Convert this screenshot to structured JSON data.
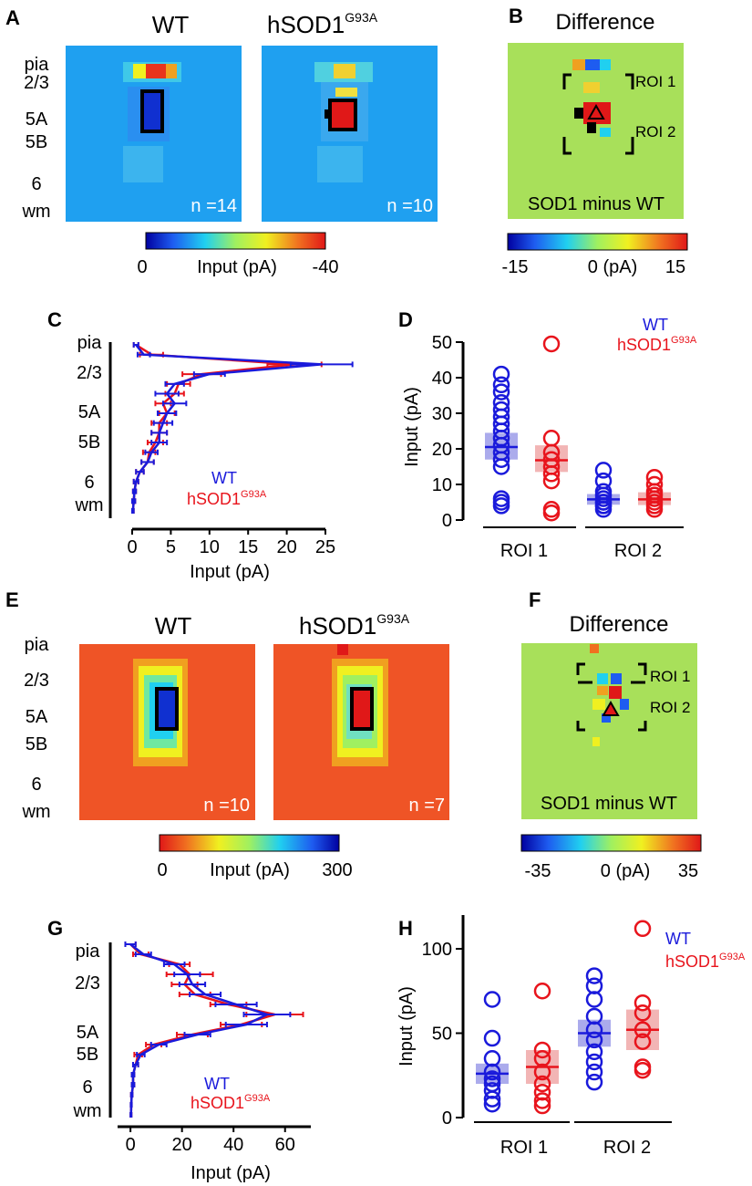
{
  "colors": {
    "wt": "#1a1adb",
    "sod1": "#e8141c",
    "wt_fill": "#8f8fe6",
    "sod1_fill": "#ee9c9c",
    "heat_bg_A": "#1fa0f0",
    "heat_bg_B": "#a8e05a",
    "heat_bg_E": "#ef5426",
    "heat_bg_F": "#a8e05a"
  },
  "layers": [
    "pia",
    "2/3",
    "5A",
    "5B",
    "6",
    "wm"
  ],
  "panels": {
    "A": {
      "letter": "A",
      "title_left": "WT",
      "title_right_base": "hSOD1",
      "title_right_sup": "G93A",
      "n_left": "n =14",
      "n_right": "n =10",
      "colorbar": {
        "min": "0",
        "label": "Input (pA)",
        "max": "-40"
      }
    },
    "B": {
      "letter": "B",
      "title": "Difference",
      "roi1": "ROI 1",
      "roi2": "ROI 2",
      "caption": "SOD1 minus WT",
      "colorbar": {
        "min": "-15",
        "label": "0 (pA)",
        "max": "15"
      }
    },
    "C": {
      "letter": "C"
    },
    "D": {
      "letter": "D"
    },
    "E": {
      "letter": "E",
      "title_left": "WT",
      "title_right_base": "hSOD1",
      "title_right_sup": "G93A",
      "n_left": "n =10",
      "n_right": "n =7",
      "colorbar": {
        "min": "0",
        "label": "Input (pA)",
        "max": "300"
      }
    },
    "F": {
      "letter": "F",
      "title": "Difference",
      "roi1": "ROI 1",
      "roi2": "ROI 2",
      "caption": "SOD1 minus WT",
      "colorbar": {
        "min": "-35",
        "label": "0 (pA)",
        "max": "35"
      }
    },
    "G": {
      "letter": "G"
    },
    "H": {
      "letter": "H"
    }
  },
  "chart_data": [
    {
      "panel": "C",
      "type": "line",
      "xlabel": "Input (pA)",
      "xlim": [
        0,
        25
      ],
      "xticks": [
        0,
        5,
        10,
        15,
        20,
        25
      ],
      "legend": [
        "WT",
        "hSOD1G93A"
      ],
      "legend_base": "hSOD1",
      "legend_sup": "G93A",
      "rows": 18,
      "series": [
        {
          "name": "WT",
          "values": [
            0.5,
            1.5,
            24.5,
            10,
            5.5,
            4.5,
            5.5,
            4.5,
            4,
            3.5,
            3.5,
            2.5,
            2,
            1,
            0.5,
            0.3,
            0.2,
            0.1
          ],
          "errors": [
            0.3,
            0.8,
            4,
            2,
            1.2,
            1.5,
            1.5,
            1.2,
            1.2,
            1,
            1,
            0.8,
            0.8,
            0.5,
            0.3,
            0.2,
            0.2,
            0.1
          ]
        },
        {
          "name": "hSOD1G93A",
          "values": [
            0.5,
            2.5,
            21,
            9,
            6,
            5.5,
            4,
            4.5,
            3.5,
            3.5,
            3,
            2.2,
            2,
            1,
            0.5,
            0.3,
            0.2,
            0.1
          ],
          "errors": [
            0.3,
            1.5,
            3.5,
            2.5,
            1.5,
            1.2,
            1,
            1,
            1,
            1,
            1,
            0.8,
            0.8,
            0.5,
            0.3,
            0.2,
            0.2,
            0.1
          ]
        }
      ]
    },
    {
      "panel": "D",
      "type": "scatter",
      "ylabel": "Input (pA)",
      "ylim": [
        0,
        50
      ],
      "yticks": [
        0,
        10,
        20,
        30,
        40,
        50
      ],
      "groups": [
        "ROI 1",
        "ROI 2"
      ],
      "legend": [
        "WT",
        "hSOD1G93A"
      ],
      "legend_base": "hSOD1",
      "legend_sup": "G93A",
      "series": [
        {
          "name": "WT",
          "points": [
            [
              41,
              38,
              36,
              33,
              31,
              29,
              27,
              25,
              23,
              21,
              19,
              17,
              15,
              6,
              5,
              4
            ],
            [
              14,
              11,
              8,
              7,
              6,
              5,
              5,
              4,
              4,
              3
            ]
          ],
          "means": [
            20.5,
            5.8
          ],
          "sem": [
            [
              17,
              24.5
            ],
            [
              4.3,
              7.3
            ]
          ]
        },
        {
          "name": "hSOD1G93A",
          "points": [
            [
              49.5,
              23,
              19,
              17,
              15,
              13,
              11,
              3,
              2
            ],
            [
              12,
              10,
              8,
              7,
              6,
              5,
              4,
              3
            ]
          ],
          "means": [
            16.8,
            5.8
          ],
          "sem": [
            [
              13.5,
              21
            ],
            [
              4.2,
              7.8
            ]
          ]
        }
      ]
    },
    {
      "panel": "G",
      "type": "line",
      "xlabel": "Input (pA)",
      "xlim": [
        -5,
        70
      ],
      "xticks": [
        0,
        20,
        40,
        60
      ],
      "legend": [
        "WT",
        "hSOD1G93A"
      ],
      "legend_base": "hSOD1",
      "legend_sup": "G93A",
      "rows": 18,
      "series": [
        {
          "name": "WT",
          "values": [
            0,
            5,
            17,
            22,
            24,
            29,
            41,
            53,
            45,
            26,
            11,
            4,
            2,
            1,
            1,
            0.5,
            0.3,
            0.2
          ],
          "errors": [
            2,
            3,
            4,
            5,
            5,
            6,
            8,
            9,
            8,
            5,
            3,
            1.5,
            1,
            0.5,
            0.5,
            0.3,
            0.2,
            0.2
          ]
        },
        {
          "name": "hSOD1G93A",
          "values": [
            0,
            4,
            19,
            23,
            21,
            25,
            38,
            56,
            43,
            24,
            9,
            3,
            2,
            1,
            1,
            0.5,
            0.3,
            0.2
          ],
          "errors": [
            2,
            3,
            4,
            9,
            5,
            6,
            7,
            11,
            8,
            6,
            3,
            1.5,
            1,
            0.5,
            0.5,
            0.3,
            0.2,
            0.2
          ]
        }
      ]
    },
    {
      "panel": "H",
      "type": "scatter",
      "ylabel": "Input (pA)",
      "ylim": [
        0,
        120
      ],
      "yticks": [
        0,
        50,
        100
      ],
      "groups": [
        "ROI 1",
        "ROI 2"
      ],
      "legend": [
        "WT",
        "hSOD1G93A"
      ],
      "legend_base": "hSOD1",
      "legend_sup": "G93A",
      "series": [
        {
          "name": "WT",
          "points": [
            [
              70,
              47,
              35,
              27,
              23,
              20,
              16,
              11,
              8
            ],
            [
              84,
              78,
              70,
              60,
              52,
              46,
              39,
              33,
              27,
              21
            ]
          ],
          "means": [
            26,
            50
          ],
          "sem": [
            [
              20,
              32
            ],
            [
              42,
              58
            ]
          ]
        },
        {
          "name": "hSOD1G93A",
          "points": [
            [
              75,
              40,
              35,
              27,
              20,
              15,
              10,
              7
            ],
            [
              112,
              68,
              62,
              52,
              45,
              30,
              28
            ]
          ],
          "means": [
            30,
            52
          ],
          "sem": [
            [
              20,
              40
            ],
            [
              40,
              64
            ]
          ]
        }
      ]
    }
  ]
}
